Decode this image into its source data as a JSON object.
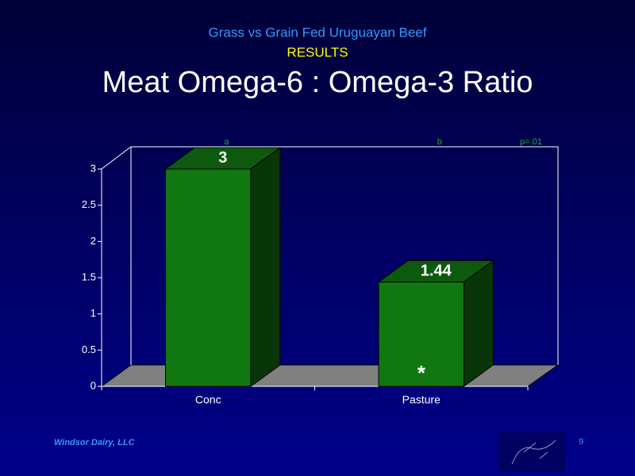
{
  "chart_data": {
    "type": "bar3d",
    "supertitle": "Grass vs Grain Fed Uruguayan Beef",
    "subtitle": "RESULTS",
    "title": "Meat Omega-6 : Omega-3 Ratio",
    "categories": [
      "Conc",
      "Pasture"
    ],
    "values": [
      3,
      1.44
    ],
    "color": "#117711",
    "ylim": [
      0,
      3
    ],
    "yticks": [
      0,
      0.5,
      1,
      1.5,
      2,
      2.5,
      3
    ],
    "group_labels": [
      "a",
      "b"
    ],
    "significance": "p=.01",
    "marker": "*"
  },
  "footer": {
    "company": "Windsor Dairy, LLC",
    "page": "9"
  }
}
